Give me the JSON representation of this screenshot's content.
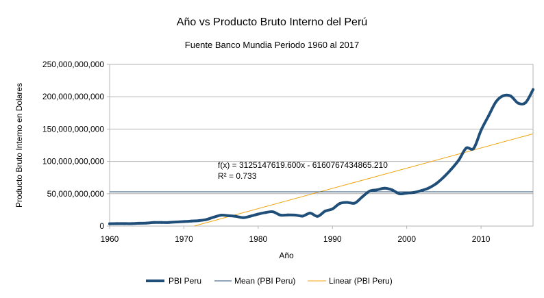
{
  "chart_data": {
    "type": "line",
    "title": "Año vs Producto Bruto Interno del Perú",
    "subtitle": "Fuente Banco Mundia Periodo 1960 al 2017",
    "xlabel": "Año",
    "ylabel": "Producto Bruto Interno en Dolares",
    "xlim": [
      1960,
      2017
    ],
    "ylim": [
      0,
      250000000000
    ],
    "xticks": [
      1960,
      1970,
      1980,
      1990,
      2000,
      2010
    ],
    "xtick_labels": [
      "1960",
      "1970",
      "1980",
      "1990",
      "2000",
      "2010"
    ],
    "yticks": [
      0,
      50000000000,
      100000000000,
      150000000000,
      200000000000,
      250000000000
    ],
    "ytick_labels": [
      "0",
      "50,000,000,000",
      "100,000,000,000",
      "150,000,000,000",
      "200,000,000,000",
      "250,000,000,000"
    ],
    "grid": true,
    "legend_position": "bottom",
    "series": [
      {
        "name": "PBI Peru",
        "color": "#1f4e79",
        "x": [
          1960,
          1961,
          1962,
          1963,
          1964,
          1965,
          1966,
          1967,
          1968,
          1969,
          1970,
          1971,
          1972,
          1973,
          1974,
          1975,
          1976,
          1977,
          1978,
          1979,
          1980,
          1981,
          1982,
          1983,
          1984,
          1985,
          1986,
          1987,
          1988,
          1989,
          1990,
          1991,
          1992,
          1993,
          1994,
          1995,
          1996,
          1997,
          1998,
          1999,
          2000,
          2001,
          2002,
          2003,
          2004,
          2005,
          2006,
          2007,
          2008,
          2009,
          2010,
          2011,
          2012,
          2013,
          2014,
          2015,
          2016,
          2017
        ],
        "values": [
          3600000000,
          3800000000,
          3800000000,
          3800000000,
          4300000000,
          4700000000,
          5500000000,
          5500000000,
          5600000000,
          6400000000,
          7000000000,
          7700000000,
          8400000000,
          10000000000,
          13700000000,
          16800000000,
          16000000000,
          15000000000,
          13000000000,
          15500000000,
          18500000000,
          21000000000,
          22000000000,
          17000000000,
          17200000000,
          17000000000,
          15500000000,
          20000000000,
          15000000000,
          23000000000,
          26500000000,
          35000000000,
          36500000000,
          35500000000,
          45000000000,
          54000000000,
          56000000000,
          58500000000,
          56000000000,
          50000000000,
          51000000000,
          52000000000,
          55000000000,
          59000000000,
          66000000000,
          76000000000,
          88000000000,
          102000000000,
          120500000000,
          120000000000,
          148000000000,
          170000000000,
          192000000000,
          201500000000,
          201000000000,
          190000000000,
          191000000000,
          211000000000
        ]
      },
      {
        "name": "Mean (PBI Peru)",
        "color": "#1f4e79",
        "value": 53000000000
      },
      {
        "name": "Linear (PBI Peru)",
        "color": "#f0a30a",
        "slope": 3125147619.6,
        "intercept": -6160767434865.21
      }
    ],
    "annotations": {
      "equation": "f(x) = 3125147619.600x - 6160767434865.210",
      "r2": "R² = 0.733"
    }
  }
}
